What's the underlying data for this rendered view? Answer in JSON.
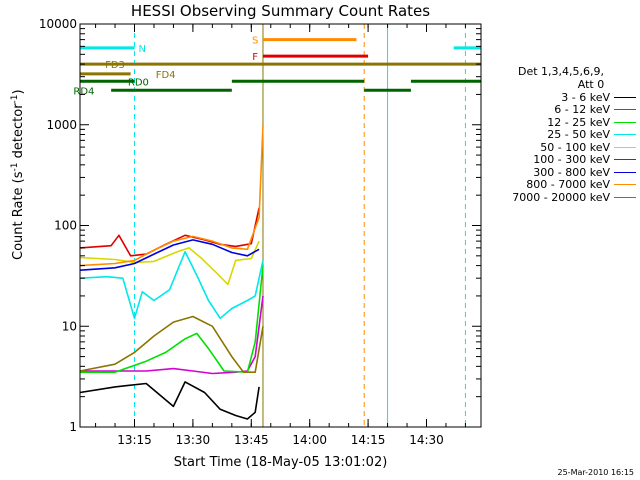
{
  "chart_data": {
    "type": "line",
    "title": "HESSI Observing Summary Count Rates",
    "xlabel": "Start Time (18-May-05 13:01:02)",
    "ylabel": "Count Rate (s^-1 detector^-1)",
    "ylabel_main": "Count Rate (s",
    "ylabel_sup1": "-1",
    "ylabel_mid": " detector",
    "ylabel_sup2": "-1",
    "ylabel_end": ")",
    "y_scale": "log",
    "ylim": [
      1,
      10000
    ],
    "xlim": [
      "13:01",
      "14:44"
    ],
    "x_ticks": [
      "13:15",
      "13:30",
      "13:45",
      "14:00",
      "14:15",
      "14:30"
    ],
    "y_ticks": [
      "1",
      "10",
      "100",
      "1000",
      "10000"
    ],
    "legend": {
      "header": [
        "Det 1,3,4,5,6,9,",
        "Att 0"
      ],
      "position": "right"
    },
    "series": [
      {
        "name": "3 - 6 keV",
        "color": "#000000",
        "points": [
          [
            "13:01",
            2.2
          ],
          [
            "13:10",
            2.5
          ],
          [
            "13:18",
            2.7
          ],
          [
            "13:25",
            1.6
          ],
          [
            "13:28",
            2.8
          ],
          [
            "13:33",
            2.2
          ],
          [
            "13:37",
            1.5
          ],
          [
            "13:41",
            1.3
          ],
          [
            "13:44",
            1.2
          ],
          [
            "13:46",
            1.4
          ],
          [
            "13:47",
            2.5
          ]
        ]
      },
      {
        "name": "6 - 12 keV",
        "color": "#d400d4",
        "points": [
          [
            "13:01",
            3.6
          ],
          [
            "13:10",
            3.6
          ],
          [
            "13:18",
            3.6
          ],
          [
            "13:25",
            3.8
          ],
          [
            "13:30",
            3.6
          ],
          [
            "13:35",
            3.4
          ],
          [
            "13:41",
            3.5
          ],
          [
            "13:44",
            3.6
          ],
          [
            "13:46",
            5.0
          ],
          [
            "13:48",
            20
          ]
        ]
      },
      {
        "name": "12 - 25 keV",
        "color": "#00e000",
        "points": [
          [
            "13:01",
            3.5
          ],
          [
            "13:10",
            3.5
          ],
          [
            "13:18",
            4.5
          ],
          [
            "13:23",
            5.5
          ],
          [
            "13:28",
            7.5
          ],
          [
            "13:31",
            8.5
          ],
          [
            "13:34",
            6.0
          ],
          [
            "13:38",
            3.6
          ],
          [
            "13:44",
            3.5
          ],
          [
            "13:46",
            7
          ],
          [
            "13:48",
            40
          ]
        ]
      },
      {
        "name": "25 - 50 keV",
        "color": "#00e8e8",
        "points": [
          [
            "13:01",
            30
          ],
          [
            "13:08",
            31
          ],
          [
            "13:12",
            30
          ],
          [
            "13:15",
            12
          ],
          [
            "13:17",
            22
          ],
          [
            "13:20",
            18
          ],
          [
            "13:24",
            23
          ],
          [
            "13:28",
            55
          ],
          [
            "13:31",
            32
          ],
          [
            "13:34",
            18
          ],
          [
            "13:37",
            12
          ],
          [
            "13:40",
            15
          ],
          [
            "13:44",
            18
          ],
          [
            "13:46",
            20
          ],
          [
            "13:48",
            45
          ]
        ]
      },
      {
        "name": "50 - 100 keV",
        "color": "#d8d800",
        "points": [
          [
            "13:01",
            48
          ],
          [
            "13:10",
            46
          ],
          [
            "13:15",
            43
          ],
          [
            "13:20",
            44
          ],
          [
            "13:26",
            55
          ],
          [
            "13:29",
            60
          ],
          [
            "13:32",
            48
          ],
          [
            "13:36",
            34
          ],
          [
            "13:39",
            26
          ],
          [
            "13:41",
            45
          ],
          [
            "13:45",
            47
          ],
          [
            "13:47",
            70
          ]
        ]
      },
      {
        "name": "100 - 300 keV",
        "color": "#e00000",
        "points": [
          [
            "13:01",
            60
          ],
          [
            "13:09",
            63
          ],
          [
            "13:11",
            80
          ],
          [
            "13:14",
            50
          ],
          [
            "13:18",
            52
          ],
          [
            "13:23",
            65
          ],
          [
            "13:28",
            80
          ],
          [
            "13:33",
            72
          ],
          [
            "13:37",
            65
          ],
          [
            "13:41",
            62
          ],
          [
            "13:45",
            66
          ],
          [
            "13:47",
            150
          ]
        ]
      },
      {
        "name": "300 - 800 keV",
        "color": "#0000e0",
        "points": [
          [
            "13:01",
            36
          ],
          [
            "13:10",
            38
          ],
          [
            "13:15",
            42
          ],
          [
            "13:20",
            52
          ],
          [
            "13:25",
            64
          ],
          [
            "13:30",
            72
          ],
          [
            "13:35",
            65
          ],
          [
            "13:40",
            54
          ],
          [
            "13:44",
            50
          ],
          [
            "13:47",
            58
          ]
        ]
      },
      {
        "name": "800 - 7000 keV",
        "color": "#ff8c00",
        "points": [
          [
            "13:01",
            40
          ],
          [
            "13:10",
            42
          ],
          [
            "13:15",
            45
          ],
          [
            "13:20",
            57
          ],
          [
            "13:25",
            70
          ],
          [
            "13:30",
            78
          ],
          [
            "13:35",
            70
          ],
          [
            "13:40",
            60
          ],
          [
            "13:44",
            58
          ],
          [
            "13:47",
            120
          ],
          [
            "13:48",
            1000
          ]
        ]
      },
      {
        "name": "7000 - 20000 keV",
        "color": "#8b7500",
        "points": [
          [
            "13:01",
            3.6
          ],
          [
            "13:10",
            4.2
          ],
          [
            "13:15",
            5.5
          ],
          [
            "13:20",
            8
          ],
          [
            "13:25",
            11
          ],
          [
            "13:30",
            12.5
          ],
          [
            "13:35",
            10
          ],
          [
            "13:40",
            5
          ],
          [
            "13:43",
            3.5
          ],
          [
            "13:46",
            3.5
          ],
          [
            "13:48",
            10
          ]
        ]
      }
    ],
    "flags": [
      {
        "label": "N",
        "color": "#00e8e8",
        "value": 5800,
        "segments": [
          [
            "13:01",
            "13:15"
          ],
          [
            "14:37",
            "14:44"
          ]
        ],
        "label_at": "13:17"
      },
      {
        "label": "S",
        "color": "#ff8c00",
        "value": 7000,
        "segments": [
          [
            "13:48",
            "14:12"
          ]
        ],
        "label_at": "13:46"
      },
      {
        "label": "F",
        "color": "#e00000",
        "value": 4800,
        "segments": [
          [
            "13:48",
            "14:15"
          ]
        ],
        "label_at": "13:46"
      },
      {
        "label": "FD3",
        "color": "#8b7500",
        "value": 4000,
        "segments": [
          [
            "13:01",
            "14:44"
          ]
        ],
        "label_at": "13:10"
      },
      {
        "label": "FD4",
        "color": "#8b7500",
        "value": 3200,
        "segments": [
          [
            "13:01",
            "13:14"
          ]
        ],
        "label_at": "13:23"
      },
      {
        "label": "RD0",
        "color": "#006400",
        "value": 2700,
        "segments": [
          [
            "13:01",
            "13:15"
          ],
          [
            "13:40",
            "14:14"
          ],
          [
            "14:26",
            "14:44"
          ]
        ],
        "label_at": "13:16"
      },
      {
        "label": "RD4",
        "color": "#006400",
        "value": 2200,
        "segments": [
          [
            "13:09",
            "13:40"
          ],
          [
            "14:14",
            "14:26"
          ]
        ],
        "label_at": "13:02"
      }
    ],
    "vertical_markers": [
      {
        "time": "13:01",
        "color": "#00e8e8",
        "dashed": false
      },
      {
        "time": "13:15",
        "color": "#00e8e8",
        "dashed": true
      },
      {
        "time": "13:48",
        "color": "#8b7500",
        "dashed": false
      },
      {
        "time": "14:14",
        "color": "#ff8c00",
        "dashed": true
      },
      {
        "time": "14:20",
        "color": "#00e8e8",
        "dashed": false
      },
      {
        "time": "14:40",
        "color": "#00e8e8",
        "dashed": true
      }
    ]
  },
  "timestamp": "25-Mar-2010 16:15"
}
